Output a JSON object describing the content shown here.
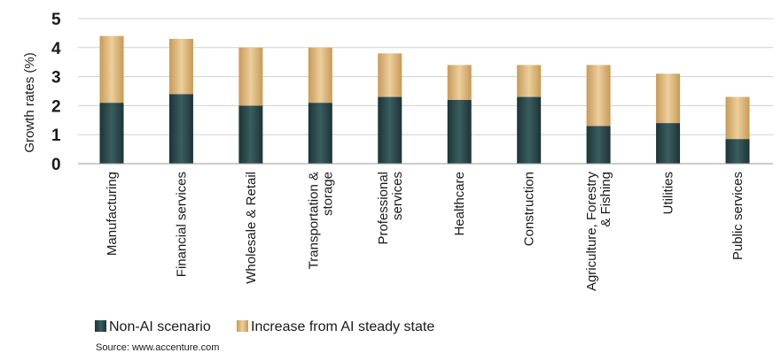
{
  "chart_data": {
    "type": "bar",
    "stacked": true,
    "ylabel": "Growth rates (%)",
    "ylim": [
      0,
      5
    ],
    "yticks": [
      0,
      1,
      2,
      3,
      4,
      5
    ],
    "grid": true,
    "legend_position": "bottom-left",
    "categories": [
      "Manufacturing",
      "Financial services",
      "Wholesale & Retail",
      "Transportation & storage",
      "Professional services",
      "Healthcare",
      "Construction",
      "Agriculture, Forestry & Fishing",
      "Utilities",
      "Public services"
    ],
    "category_lines": [
      [
        "Manufacturing"
      ],
      [
        "Financial services"
      ],
      [
        "Wholesale & Retail"
      ],
      [
        "Transportation &",
        "storage"
      ],
      [
        "Professional",
        "services"
      ],
      [
        "Healthcare"
      ],
      [
        "Construction"
      ],
      [
        "Agriculture, Forestry",
        "& Fishing"
      ],
      [
        "Utilities"
      ],
      [
        "Public services"
      ]
    ],
    "series": [
      {
        "name": "Non-AI scenario",
        "color": "#2c4a4c",
        "values": [
          2.1,
          2.4,
          2.0,
          2.1,
          2.3,
          2.2,
          2.3,
          1.3,
          1.4,
          0.85
        ]
      },
      {
        "name": "Increase from AI steady state",
        "color": "#d7ae6e",
        "values": [
          2.3,
          1.9,
          2.0,
          1.9,
          1.5,
          1.2,
          1.1,
          2.1,
          1.7,
          1.45
        ]
      }
    ],
    "source": "Source: www.accenture.com"
  }
}
